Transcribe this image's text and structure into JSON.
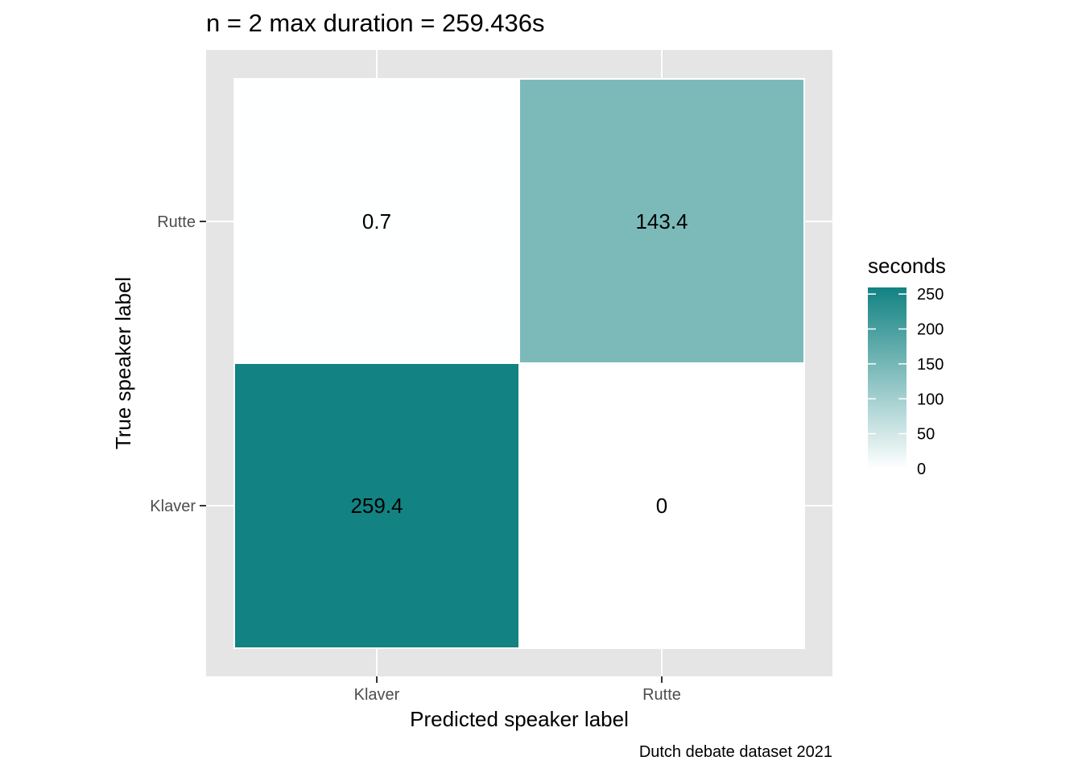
{
  "chart_data": {
    "type": "heatmap",
    "title": "n = 2 max duration = 259.436s",
    "xlabel": "Predicted speaker label",
    "ylabel": "True speaker label",
    "caption": "Dutch debate dataset 2021",
    "x_categories": [
      "Klaver",
      "Rutte"
    ],
    "y_categories": [
      "Klaver",
      "Rutte"
    ],
    "cells": [
      {
        "x": "Klaver",
        "y": "Rutte",
        "value": 0.7,
        "label": "0.7"
      },
      {
        "x": "Rutte",
        "y": "Rutte",
        "value": 143.4,
        "label": "143.4"
      },
      {
        "x": "Klaver",
        "y": "Klaver",
        "value": 259.4,
        "label": "259.4"
      },
      {
        "x": "Rutte",
        "y": "Klaver",
        "value": 0,
        "label": "0"
      }
    ],
    "legend": {
      "title": "seconds",
      "min": 0,
      "max": 259.436,
      "ticks": [
        0,
        50,
        100,
        150,
        200,
        250
      ],
      "low_color": "#ffffff",
      "high_color": "#128282"
    },
    "panel_background": "#e5e5e5",
    "grid": true
  }
}
